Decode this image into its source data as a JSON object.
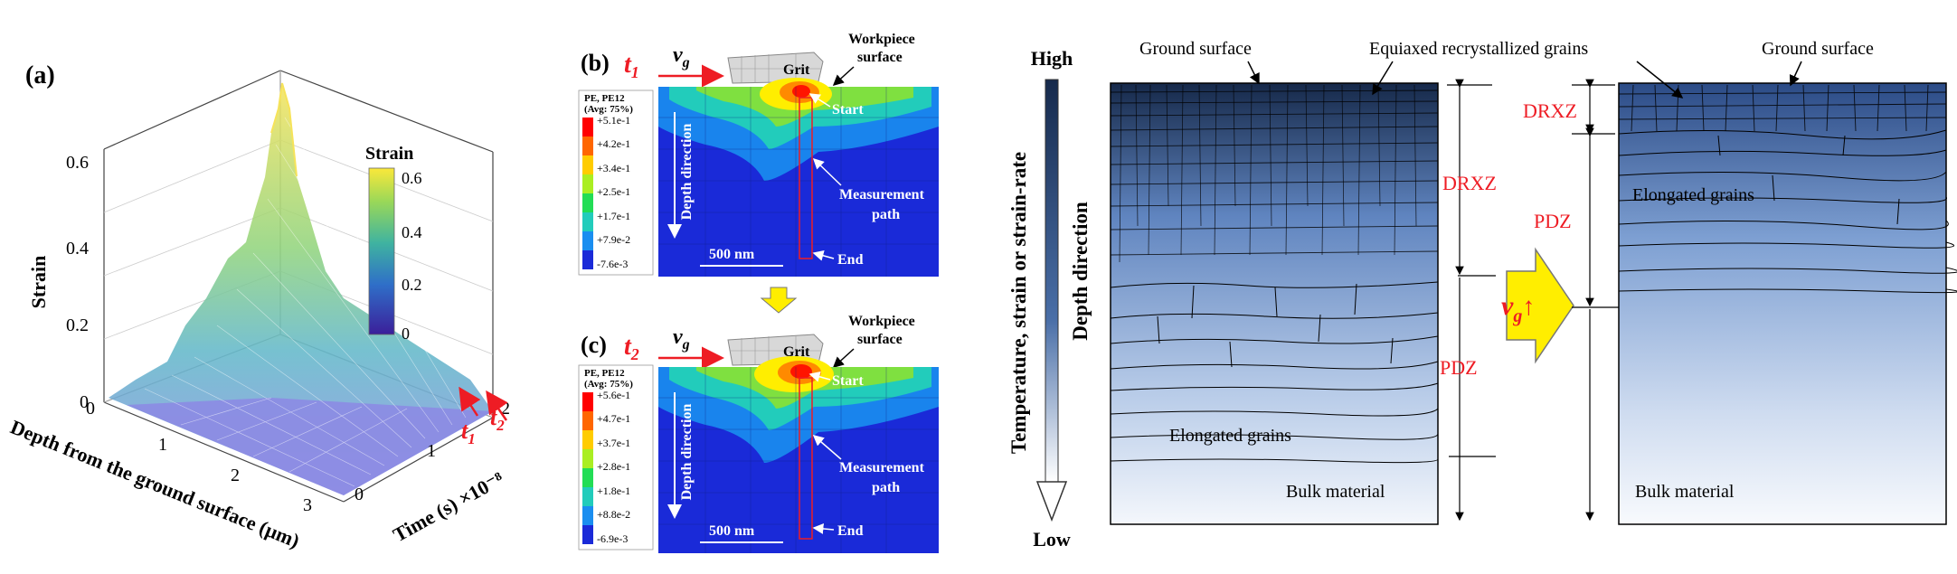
{
  "panel_a": {
    "label": "(a)",
    "z_axis_label": "Strain",
    "z_ticks": [
      "0",
      "0.2",
      "0.4",
      "0.6"
    ],
    "x_axis_label": "Depth from the ground surface (μm)",
    "x_ticks": [
      "0",
      "1",
      "2",
      "3"
    ],
    "y_axis_label": "Time (s) ×10⁻⁸",
    "y_ticks": [
      "0",
      "1",
      "2"
    ],
    "colorbar_title": "Strain",
    "colorbar_ticks": [
      "0",
      "0.2",
      "0.4",
      "0.6"
    ],
    "t1": "t",
    "t1_sub": "1",
    "t2": "t",
    "t2_sub": "2"
  },
  "panel_b": {
    "label": "(b)",
    "time": "t",
    "time_sub": "1",
    "velocity": "v",
    "velocity_sub": "g",
    "grit": "Grit",
    "workpiece": "Workpiece",
    "surface": "surface",
    "legend_title": [
      "PE, PE12",
      "(Avg: 75%)"
    ],
    "legend_values": [
      "+5.1e-1",
      "+4.2e-1",
      "+3.4e-1",
      "+2.5e-1",
      "+1.7e-1",
      "+7.9e-2",
      "-7.6e-3"
    ],
    "start": "Start",
    "end": "End",
    "measurement": "Measurement",
    "path": "path",
    "depth_direction": "Depth direction",
    "scale": "500 nm"
  },
  "panel_c": {
    "label": "(c)",
    "time": "t",
    "time_sub": "2",
    "velocity": "v",
    "velocity_sub": "g",
    "grit": "Grit",
    "workpiece": "Workpiece",
    "surface": "surface",
    "legend_title": [
      "PE, PE12",
      "(Avg: 75%)"
    ],
    "legend_values": [
      "+5.6e-1",
      "+4.7e-1",
      "+3.7e-1",
      "+2.8e-1",
      "+1.8e-1",
      "+8.8e-2",
      "-6.9e-3"
    ],
    "start": "Start",
    "end": "End",
    "measurement": "Measurement",
    "path": "path",
    "depth_direction": "Depth direction",
    "scale": "500 nm"
  },
  "schematic": {
    "high": "High",
    "low": "Low",
    "gradient_label": "Temperature, strain or strain-rate",
    "depth_direction": "Depth direction",
    "ground_surface_left": "Ground surface",
    "equiaxed": "Equiaxed recrystallized grains",
    "ground_surface_right": "Ground surface",
    "drxz_left": "DRXZ",
    "pdz_left": "PDZ",
    "drxz_right": "DRXZ",
    "pdz_right": "PDZ",
    "elongated_left": "Elongated grains",
    "elongated_right": "Elongated grains",
    "bulk_left": "Bulk material",
    "bulk_right": "Bulk material",
    "vg": "v",
    "vg_sub": "g",
    "vg_arrow": "↑"
  },
  "colors": {
    "fem_blue": "#1a2ad8",
    "red_label": "#ee1c24",
    "arrow_yellow": "#ffee00",
    "dark_navy": "#162a4c"
  }
}
